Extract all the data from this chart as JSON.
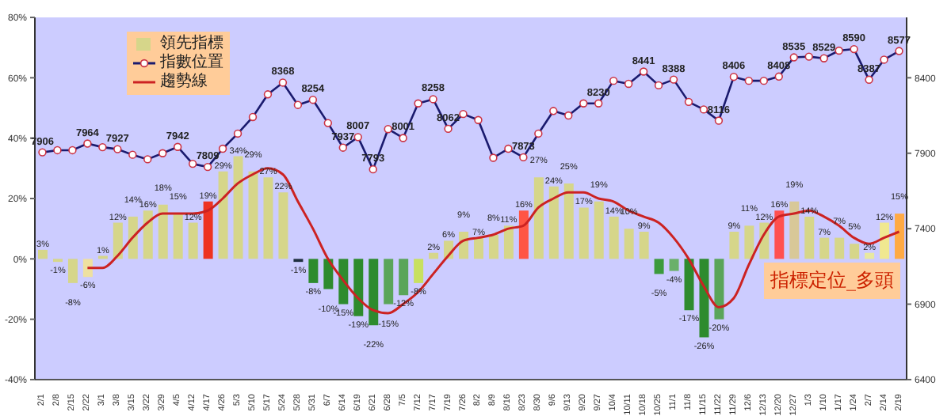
{
  "chart_data": {
    "type": "bar",
    "categories": [
      "2/1",
      "2/8",
      "2/15",
      "2/22",
      "3/1",
      "3/8",
      "3/15",
      "3/22",
      "3/29",
      "4/5",
      "4/12",
      "4/17",
      "4/26",
      "5/3",
      "5/10",
      "5/17",
      "5/24",
      "5/28",
      "5/31",
      "6/7",
      "6/14",
      "6/19",
      "6/21",
      "6/28",
      "7/5",
      "7/12",
      "7/17",
      "7/19",
      "7/26",
      "8/2",
      "8/9",
      "8/16",
      "8/23",
      "8/30",
      "9/6",
      "9/13",
      "9/20",
      "9/27",
      "10/4",
      "10/11",
      "10/18",
      "10/25",
      "11/1",
      "11/8",
      "11/15",
      "11/22",
      "11/29",
      "12/6",
      "12/13",
      "12/20",
      "12/27",
      "1/3",
      "1/10",
      "1/17",
      "1/24",
      "2/7",
      "2/14",
      "2/19"
    ],
    "series": [
      {
        "name": "領先指標",
        "colors": [
          "#d6d68a",
          "#d6d68a",
          "#d6d68a",
          "#eee0a0",
          "#d6d68a",
          "#d6d68a",
          "#d6d68a",
          "#d6d68a",
          "#d6d68a",
          "#d6d68a",
          "#d6d68a",
          "#ee3322",
          "#d6d68a",
          "#d6d68a",
          "#d6d68a",
          "#d6d68a",
          "#d6d68a",
          "#203040",
          "#2e8b2e",
          "#2e8b2e",
          "#2e8b2e",
          "#2e8b2e",
          "#2e8b2e",
          "#5aa55a",
          "#5aa55a",
          "#c8e060",
          "#d6d68a",
          "#d6d68a",
          "#d6d68a",
          "#d6d68a",
          "#d6d68a",
          "#d6d68a",
          "#ff5544",
          "#d6d68a",
          "#d6d68a",
          "#d6d68a",
          "#d6d68a",
          "#d6d68a",
          "#d6d68a",
          "#d6d68a",
          "#d6d68a",
          "#3c9a3c",
          "#6ab06a",
          "#2e8b2e",
          "#2e8b2e",
          "#5aa55a",
          "#d6d68a",
          "#d6d68a",
          "#d6d68a",
          "#ff5050",
          "#d8c898",
          "#d6d68a",
          "#d6d68a",
          "#d6d68a",
          "#d6d68a",
          "#e8e8a0",
          "#f0e890",
          "#ffaa44"
        ],
        "values": [
          3,
          -1,
          -8,
          -6,
          1,
          12,
          14,
          16,
          18,
          15,
          12,
          19,
          29,
          34,
          29,
          27,
          22,
          -1,
          -8,
          -10,
          -15,
          -19,
          -22,
          -15,
          -12,
          -8,
          2,
          6,
          9,
          7,
          8,
          11,
          16,
          27,
          24,
          25,
          17,
          19,
          14,
          10,
          9,
          -5,
          -4,
          -17,
          -26,
          -20,
          9,
          11,
          12,
          16,
          19,
          14,
          7,
          7,
          5,
          2,
          12,
          15
        ],
        "value_labels": [
          "3%",
          "-1%",
          "-8%",
          "-6%",
          "1%",
          "12%",
          "14%",
          "16%",
          "18%",
          "15%",
          "12%",
          "19%",
          "29%",
          "34%",
          "29%",
          "27%",
          "22%",
          "-1%",
          "-8%",
          "-10%",
          "-15%",
          "-19%",
          "-22%",
          "-15%",
          "-12%",
          "-8%",
          "2%",
          "6%",
          "9%",
          "7%",
          "8%",
          "11%",
          "16%",
          "27%",
          "24%",
          "25%",
          "17%",
          "19%",
          "14%",
          "10%",
          "9%",
          "-5%",
          "-4%",
          "-17%",
          "-26%",
          "-20%",
          "9%",
          "11%",
          "12%",
          "16%",
          "19%",
          "14%",
          "7%",
          "7%",
          "5%",
          "2%",
          "12%",
          "15%"
        ]
      },
      {
        "type": "line",
        "name": "指數位置",
        "color": "#1a1a6e",
        "axis": "y2",
        "marker": "circle",
        "values": [
          7906,
          7920,
          7920,
          7964,
          7940,
          7927,
          7890,
          7860,
          7900,
          7942,
          7830,
          7809,
          7930,
          8030,
          8140,
          8290,
          8368,
          8220,
          8254,
          8100,
          7937,
          8007,
          7793,
          8060,
          8001,
          8230,
          8258,
          8062,
          8160,
          8120,
          7870,
          7930,
          7873,
          8030,
          8180,
          8150,
          8230,
          8230,
          8380,
          8360,
          8441,
          8350,
          8388,
          8240,
          8190,
          8116,
          8406,
          8380,
          8380,
          8408,
          8535,
          8540,
          8529,
          8580,
          8590,
          8387,
          8520,
          8577
        ],
        "value_labels": [
          "7906",
          null,
          null,
          "7964",
          null,
          "7927",
          null,
          null,
          null,
          "7942",
          null,
          "7809",
          null,
          null,
          null,
          null,
          "8368",
          null,
          "8254",
          null,
          "7937",
          "8007",
          "7793",
          null,
          "8001",
          null,
          "8258",
          "8062",
          null,
          null,
          null,
          null,
          "7873",
          null,
          null,
          null,
          null,
          "8230",
          null,
          null,
          "8441",
          null,
          "8388",
          null,
          null,
          "8116",
          "8406",
          null,
          null,
          "8408",
          "8535",
          null,
          "8529",
          null,
          "8590",
          "8387",
          null,
          "8577"
        ]
      },
      {
        "type": "line",
        "name": "趨勢線",
        "color": "#cc2222",
        "marker": "none",
        "values": [
          null,
          null,
          null,
          -3,
          -3,
          1,
          7,
          12,
          15,
          15,
          15,
          16,
          20,
          25,
          28,
          30,
          28,
          19,
          10,
          0,
          -7,
          -13,
          -17,
          -18,
          -15,
          -11,
          -5,
          1,
          6,
          7,
          8,
          10,
          11,
          17,
          20,
          22,
          22,
          20,
          19,
          16,
          14,
          12,
          7,
          0,
          -9,
          -16,
          -13,
          -2,
          8,
          14,
          15,
          16,
          14,
          11,
          7,
          5,
          7,
          9
        ]
      }
    ],
    "ylim": [
      -40,
      80
    ],
    "yticks": [
      {
        "value": -40,
        "label": "-40%"
      },
      {
        "value": -20,
        "label": "-20%"
      },
      {
        "value": 0,
        "label": "0%"
      },
      {
        "value": 20,
        "label": "20%"
      },
      {
        "value": 40,
        "label": "40%"
      },
      {
        "value": 60,
        "label": "60%"
      },
      {
        "value": 80,
        "label": "80%"
      }
    ],
    "y2lim": [
      6400,
      8800
    ],
    "y2ticks": [
      6400,
      6900,
      7400,
      7900,
      8400
    ],
    "legend": "top left",
    "annotations": [
      "指標定位_多頭"
    ]
  }
}
